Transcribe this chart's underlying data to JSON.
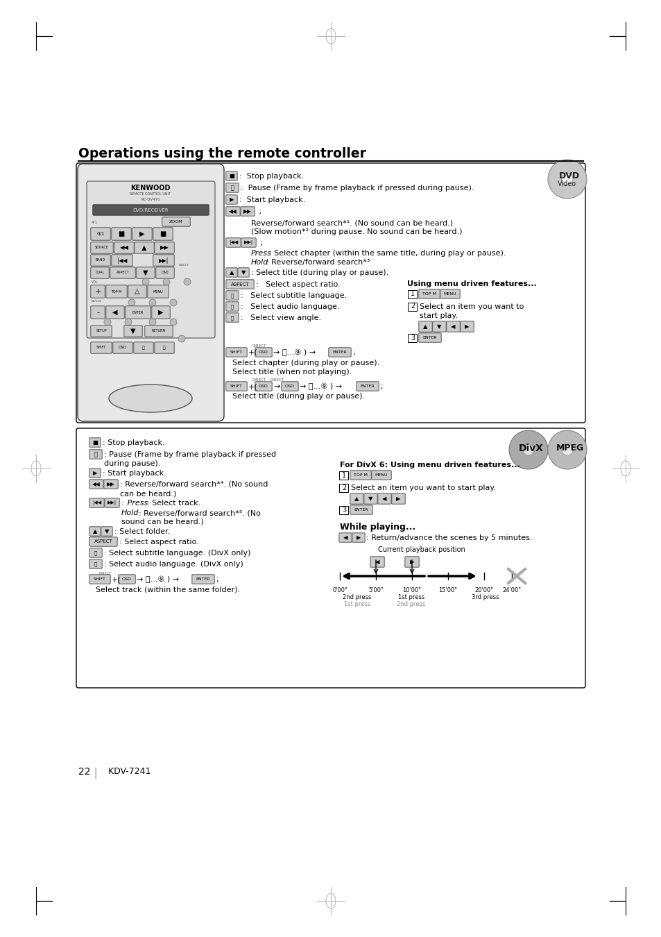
{
  "bg": "#ffffff",
  "title": "Operations using the remote controller",
  "footer_num": "22",
  "footer_model": "KDV-7241"
}
